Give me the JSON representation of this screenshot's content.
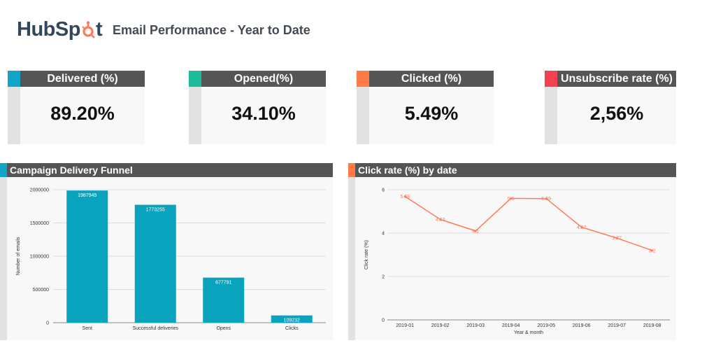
{
  "brand": {
    "text_a": "HubSp",
    "text_b": "t",
    "accent": "#ff7a59"
  },
  "page_title": "Email Performance - Year to Date",
  "kpis": [
    {
      "label": "Delivered (%)",
      "value": "89.20%",
      "color": "#0ea5c8"
    },
    {
      "label": "Opened(%)",
      "value": "34.10%",
      "color": "#1abc9c"
    },
    {
      "label": "Clicked (%)",
      "value": "5.49%",
      "color": "#ff7a45"
    },
    {
      "label": "Unsubscribe rate (%)",
      "value": "2,56%",
      "color": "#f5414f"
    }
  ],
  "funnel_panel": {
    "title": "Campaign Delivery Funnel",
    "color": "#0ea5c8"
  },
  "click_panel": {
    "title": "Click rate (%) by date",
    "color": "#ff7a45"
  },
  "chart_data": [
    {
      "type": "bar",
      "title": "Campaign Delivery Funnel",
      "categories": [
        "Sent",
        "Successful deliveries",
        "Opens",
        "Clicks"
      ],
      "values": [
        1987945,
        1773255,
        677791,
        109232
      ],
      "data_labels": [
        "1987945",
        "1773255",
        "677791",
        "109232"
      ],
      "xlabel": "",
      "ylabel": "Number of emails",
      "ylim": [
        0,
        2000000
      ],
      "yticks": [
        0,
        500000,
        1000000,
        1500000,
        2000000
      ],
      "ytick_labels": [
        "0",
        "500000",
        "1000000",
        "1500000",
        "2000000"
      ],
      "grid": true,
      "color": "#0aa3bd"
    },
    {
      "type": "line",
      "title": "Click rate (%) by date",
      "x": [
        "2019-01",
        "2019-02",
        "2019-03",
        "2019-04",
        "2019-05",
        "2019-06",
        "2019-07",
        "2019-08"
      ],
      "values": [
        5.69,
        4.63,
        4.1,
        5.6,
        5.59,
        4.27,
        3.77,
        3.2
      ],
      "data_labels": [
        "5.69",
        "4.63",
        "4.1",
        "5.6",
        "5.59",
        "4.27",
        "3.77",
        "3.2"
      ],
      "xlabel": "Year & month",
      "ylabel": "Click rate (%)",
      "ylim": [
        0,
        6
      ],
      "yticks": [
        0,
        2,
        4,
        6
      ],
      "ytick_labels": [
        "0",
        "2",
        "4",
        "6"
      ],
      "grid": true,
      "color": "#ff7a59"
    }
  ]
}
